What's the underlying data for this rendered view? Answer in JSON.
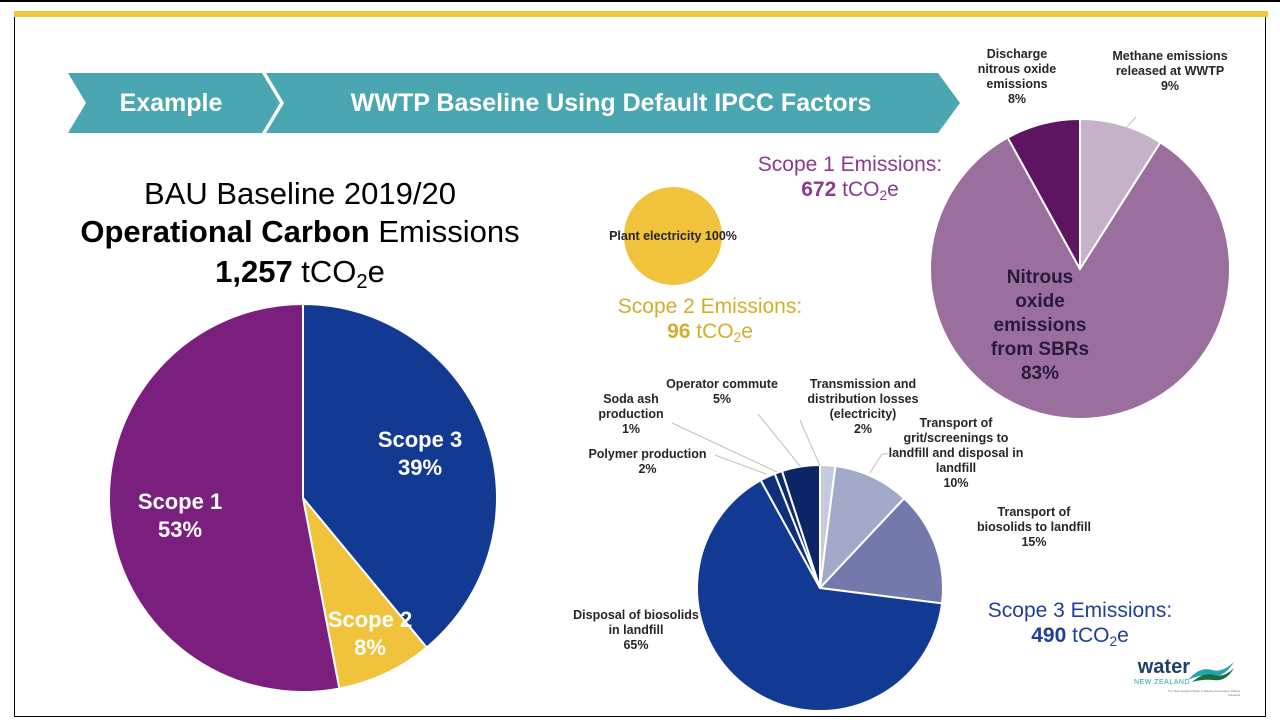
{
  "banner": {
    "example": "Example",
    "title": "WWTP Baseline Using  Default IPCC Factors"
  },
  "main_title": {
    "line1": "BAU Baseline 2019/20",
    "line2_bold": "Operational Carbon",
    "line2_rest": " Emissions",
    "total_bold": "1,257",
    "total_unit_prefix": " tCO",
    "total_unit_sub": "2",
    "total_unit_suffix": "e"
  },
  "scope2_title": {
    "label": "Scope 2 Emissions:",
    "value": "96",
    "unit_prefix": " tCO",
    "unit_sub": "2",
    "unit_suffix": "e"
  },
  "scope1_title": {
    "label": "Scope 1 Emissions:",
    "value": "672",
    "unit_prefix": " tCO",
    "unit_sub": "2",
    "unit_suffix": "e"
  },
  "scope3_title": {
    "label": "Scope 3 Emissions:",
    "value": "490",
    "unit_prefix": " tCO",
    "unit_sub": "2",
    "unit_suffix": "e"
  },
  "logo": {
    "word": "water",
    "sub": "NEW ZEALAND",
    "tagline": "The New Zealand Water & Wastes Association Waiora Aotearoa"
  },
  "colors": {
    "banner": "#4aa7b1",
    "scope1": "#7b1f7e",
    "scope2": "#f1c33c",
    "scope3": "#133a92",
    "scope1_title": "#8b3a8e",
    "scope2_title": "#d4ad2b",
    "scope3_title": "#1f3f99"
  },
  "chart_data": [
    {
      "type": "pie",
      "slices": [
        {
          "label": "Scope 3",
          "pct_label": "39%",
          "value": 39,
          "color": "#133a92"
        },
        {
          "label": "Scope 2",
          "pct_label": "8%",
          "value": 8,
          "color": "#f1c33c"
        },
        {
          "label": "Scope 1",
          "pct_label": "53%",
          "value": 53,
          "color": "#7b1f7e"
        }
      ]
    },
    {
      "type": "pie",
      "slices": [
        {
          "label": "Plant electricity 100%",
          "value": 100,
          "color": "#f1c33c"
        }
      ]
    },
    {
      "type": "pie",
      "slices": [
        {
          "label": "Methane emissions released at WWTP",
          "pct_label": "9%",
          "value": 9,
          "color": "#c5b1c8"
        },
        {
          "label": "Nitrous oxide emissions from SBRs",
          "pct_label": "83%",
          "value": 83,
          "color": "#9b6f9d"
        },
        {
          "label": "Discharge nitrous oxide emissions",
          "pct_label": "8%",
          "value": 8,
          "color": "#5e1561"
        }
      ]
    },
    {
      "type": "pie",
      "slices": [
        {
          "label": "Transmission and distribution losses (electricity)",
          "pct_label": "2%",
          "value": 2,
          "color": "#c5cbdf"
        },
        {
          "label": "Transport of grit/screenings to landfill and disposal in landfill",
          "pct_label": "10%",
          "value": 10,
          "color": "#a3a9c8"
        },
        {
          "label": "Transport of biosolids to landfill",
          "pct_label": "15%",
          "value": 15,
          "color": "#7379ab"
        },
        {
          "label": "Disposal of biosolids in landfill",
          "pct_label": "65%",
          "value": 65,
          "color": "#133a92"
        },
        {
          "label": "Polymer production",
          "pct_label": "2%",
          "value": 2,
          "color": "#0f2f7e"
        },
        {
          "label": "Soda ash production",
          "pct_label": "1%",
          "value": 1,
          "color": "#0c296e"
        },
        {
          "label": "Operator commute",
          "pct_label": "5%",
          "value": 5,
          "color": "#0b2566"
        }
      ]
    }
  ]
}
